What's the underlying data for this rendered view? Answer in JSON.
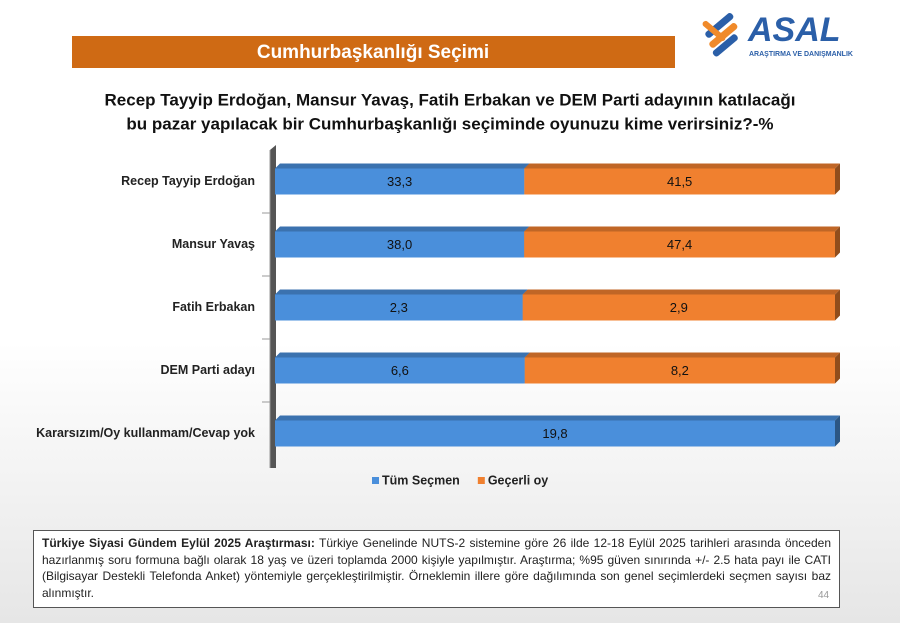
{
  "header": {
    "title": "Cumhurbaşkanlığı Seçimi",
    "logo": "ASAL",
    "logo_subtitle": "ARAŞTIRMA VE DANIŞMANLIK"
  },
  "chart_data": {
    "type": "bar",
    "orientation": "horizontal",
    "stacked": "percent",
    "title": [
      "Recep Tayyip Erdoğan, Mansur Yavaş, Fatih Erbakan ve DEM Parti adayının katılacağı",
      "bu pazar yapılacak bir Cumhurbaşkanlığı seçiminde oyunuzu kime verirsiniz?-%"
    ],
    "categories": [
      "Recep Tayyip Erdoğan",
      "Mansur Yavaş",
      "Fatih Erbakan",
      "DEM Parti adayı",
      "Kararsızım/Oy kullanmam/Cevap yok"
    ],
    "series": [
      {
        "name": "Tüm Seçmen",
        "color": "#4a8fdb",
        "values": [
          33.3,
          38.0,
          2.3,
          6.6,
          19.8
        ],
        "value_labels": [
          "33,3",
          "38,0",
          "2,3",
          "6,6",
          "19,8"
        ]
      },
      {
        "name": "Geçerli oy",
        "color": "#f0802f",
        "values": [
          41.5,
          47.4,
          2.9,
          8.2,
          null
        ],
        "value_labels": [
          "41,5",
          "47,4",
          "2,9",
          "8,2",
          null
        ]
      }
    ],
    "legend": "bottom"
  },
  "footnote": {
    "lead": "Türkiye Siyasi Gündem Eylül 2025 Araştırması:",
    "text": "Türkiye Genelinde NUTS-2 sistemine göre 26 ilde 12-18 Eylül 2025 tarihleri arasında önceden hazırlanmış soru formuna bağlı olarak 18 yaş ve üzeri toplamda 2000 kişiyle yapılmıştır. Araştırma; %95 güven sınırında +/- 2.5 hata payı ile CATI (Bilgisayar Destekli Telefonda Anket) yöntemiyle gerçekleştirilmiştir. Örneklemin illere göre dağılımında son genel seçimlerdeki seçmen sayısı baz alınmıştır."
  },
  "page_number": "44"
}
